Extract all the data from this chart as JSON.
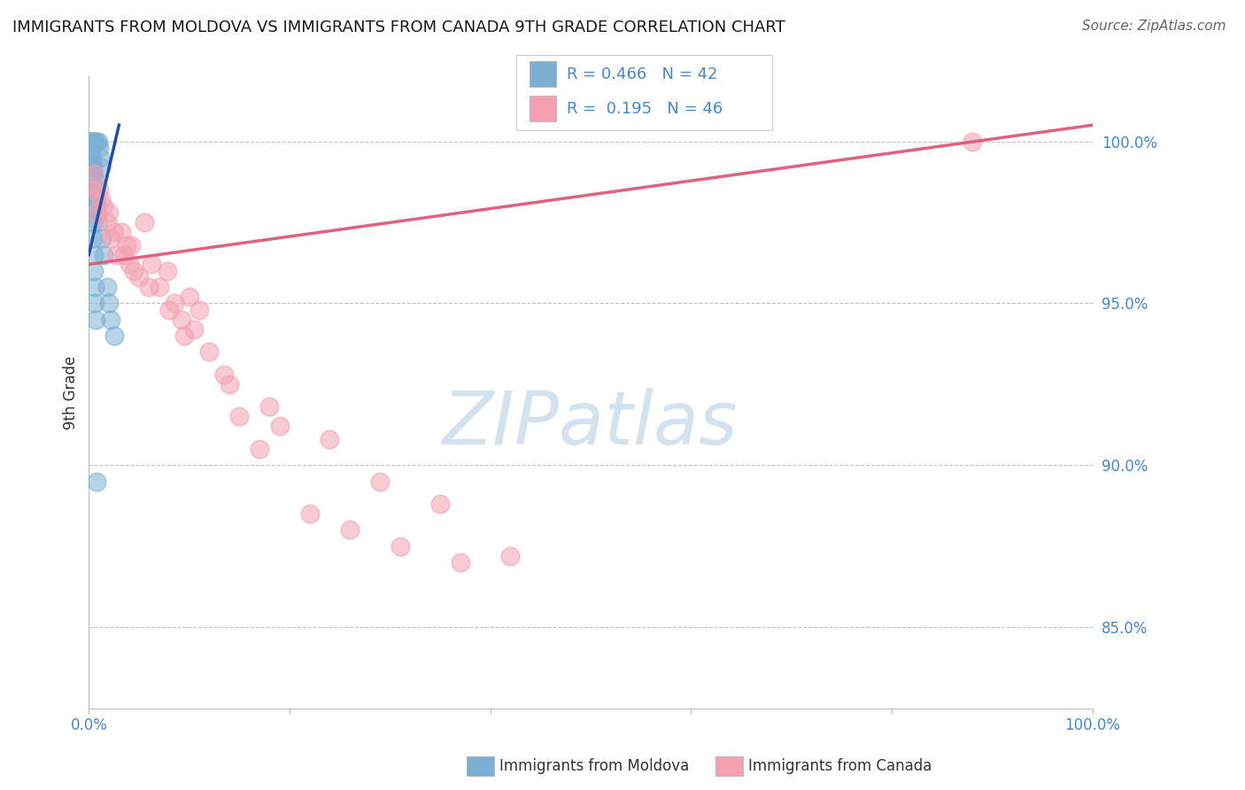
{
  "title": "IMMIGRANTS FROM MOLDOVA VS IMMIGRANTS FROM CANADA 9TH GRADE CORRELATION CHART",
  "source": "Source: ZipAtlas.com",
  "ylabel": "9th Grade",
  "legend1_label": "Immigrants from Moldova",
  "legend2_label": "Immigrants from Canada",
  "R_moldova": 0.466,
  "N_moldova": 42,
  "R_canada": 0.195,
  "N_canada": 46,
  "xlim": [
    0.0,
    100.0
  ],
  "ylim": [
    82.5,
    102.0
  ],
  "yticks": [
    85.0,
    90.0,
    95.0,
    100.0
  ],
  "ytick_labels": [
    "85.0%",
    "90.0%",
    "95.0%",
    "100.0%"
  ],
  "color_moldova": "#7bafd4",
  "color_canada": "#f4a0b0",
  "line_color_moldova": "#2050a0",
  "line_color_canada": "#e06080",
  "background_color": "#ffffff",
  "title_color": "#1a1a1a",
  "axis_label_color": "#333333",
  "legend_R_color": "#4488cc",
  "tick_color": "#4488cc",
  "watermark_color": "#ccdded",
  "moldova_x": [
    0.1,
    0.2,
    0.3,
    0.5,
    0.6,
    0.8,
    0.9,
    1.0,
    1.1,
    1.2,
    0.15,
    0.25,
    0.35,
    0.45,
    0.55,
    0.65,
    0.75,
    0.85,
    0.95,
    0.4,
    0.7,
    1.3,
    1.5,
    1.8,
    2.0,
    2.2,
    2.5,
    0.05,
    0.08,
    0.12,
    0.18,
    0.22,
    0.28,
    0.32,
    0.38,
    0.42,
    0.48,
    0.52,
    0.58,
    0.62,
    0.68,
    0.72
  ],
  "moldova_y": [
    100.0,
    100.0,
    100.0,
    100.0,
    100.0,
    100.0,
    100.0,
    99.8,
    99.5,
    99.2,
    99.8,
    99.5,
    99.3,
    99.0,
    98.8,
    98.5,
    98.2,
    97.8,
    97.5,
    99.2,
    98.0,
    97.0,
    96.5,
    95.5,
    95.0,
    94.5,
    94.0,
    100.0,
    100.0,
    99.7,
    99.3,
    99.0,
    98.5,
    98.0,
    97.5,
    97.0,
    96.5,
    96.0,
    95.5,
    95.0,
    94.5,
    89.5
  ],
  "canada_x": [
    0.3,
    0.8,
    1.2,
    1.8,
    2.2,
    2.8,
    3.2,
    3.8,
    4.5,
    5.0,
    5.5,
    6.2,
    7.0,
    7.8,
    8.5,
    9.2,
    10.0,
    11.0,
    12.0,
    13.5,
    15.0,
    17.0,
    19.0,
    22.0,
    26.0,
    31.0,
    37.0,
    42.0,
    88.0,
    1.5,
    2.5,
    3.5,
    4.2,
    6.0,
    8.0,
    10.5,
    14.0,
    18.0,
    24.0,
    29.0,
    35.0,
    0.5,
    1.0,
    2.0,
    4.0,
    9.5
  ],
  "canada_y": [
    98.5,
    97.8,
    98.2,
    97.5,
    97.0,
    96.5,
    97.2,
    96.8,
    96.0,
    95.8,
    97.5,
    96.2,
    95.5,
    96.0,
    95.0,
    94.5,
    95.2,
    94.8,
    93.5,
    92.8,
    91.5,
    90.5,
    91.2,
    88.5,
    88.0,
    87.5,
    87.0,
    87.2,
    100.0,
    98.0,
    97.2,
    96.5,
    96.8,
    95.5,
    94.8,
    94.2,
    92.5,
    91.8,
    90.8,
    89.5,
    88.8,
    99.0,
    98.5,
    97.8,
    96.2,
    94.0
  ],
  "moldova_trendline_x": [
    0.0,
    3.0
  ],
  "moldova_trendline_y": [
    96.5,
    100.5
  ],
  "canada_trendline_x": [
    0.0,
    100.0
  ],
  "canada_trendline_y": [
    96.2,
    100.5
  ]
}
